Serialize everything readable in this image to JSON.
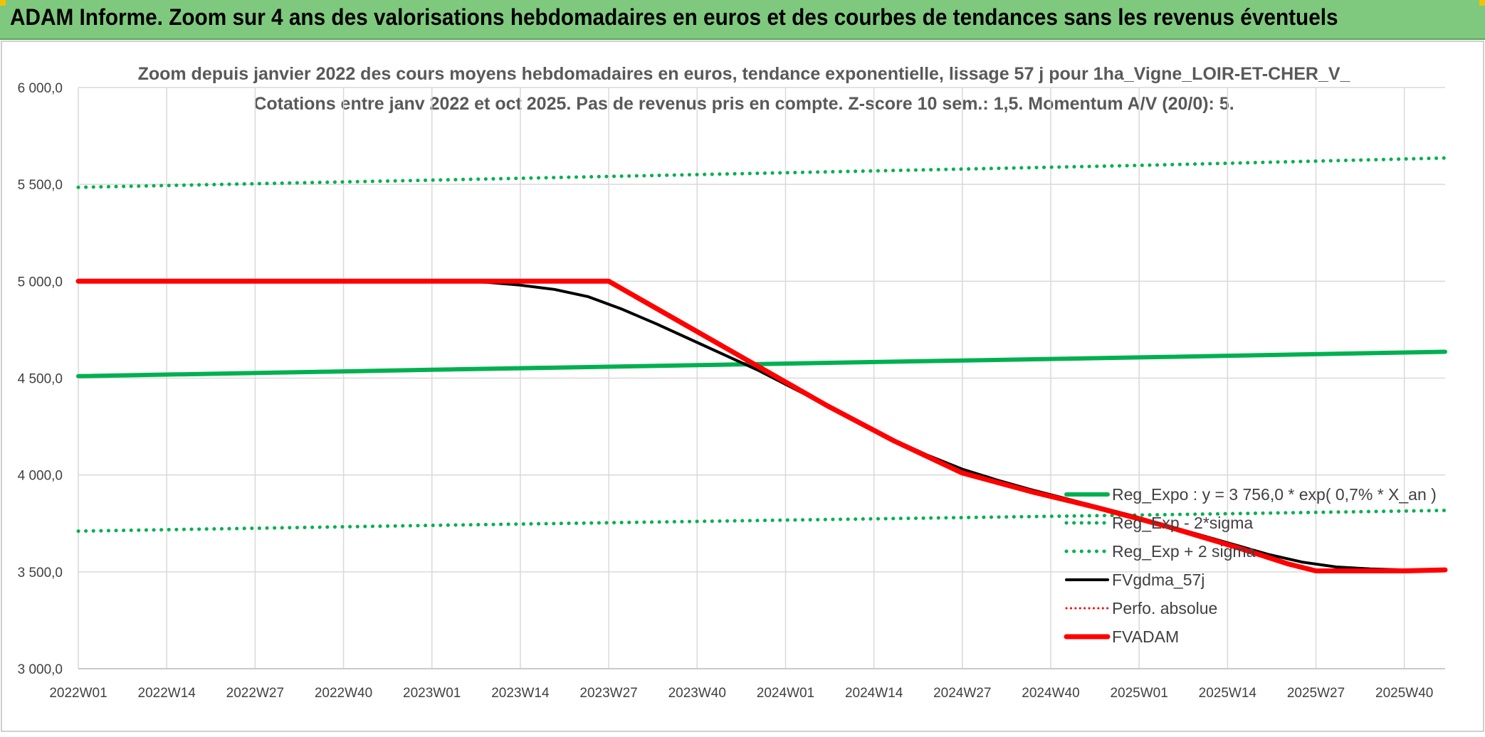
{
  "header": {
    "title": "ADAM Informe. Zoom sur 4 ans des valorisations hebdomadaires en euros et des courbes de tendances sans les revenus éventuels"
  },
  "colors": {
    "banner": "#7ec97e",
    "reg_green": "#00b050",
    "black": "#000000",
    "red": "#ff0000",
    "grid": "#d9d9d9",
    "text": "#404040"
  },
  "chart_data": {
    "type": "line",
    "title": "Zoom depuis janvier 2022 des cours moyens hebdomadaires en euros, tendance exponentielle, lissage 57 j pour 1ha_Vigne_LOIR-ET-CHER_V_",
    "subtitle": "Cotations entre janv 2022 et oct 2025. Pas de revenus pris en compte. Z-score 10 sem.: 1,5. Momentum A/V (20/0): 5.",
    "xlabel": "",
    "ylabel": "",
    "ylim": [
      3000,
      6000
    ],
    "yticks": [
      "3 000,0",
      "3 500,0",
      "4 000,0",
      "4 500,0",
      "5 000,0",
      "5 500,0",
      "6 000,0"
    ],
    "xticks": [
      "2022W01",
      "2022W14",
      "2022W27",
      "2022W40",
      "2023W01",
      "2023W14",
      "2023W27",
      "2023W40",
      "2024W01",
      "2024W14",
      "2024W27",
      "2024W40",
      "2025W01",
      "2025W14",
      "2025W27",
      "2025W40"
    ],
    "xrange": [
      0,
      201
    ],
    "grid": true,
    "legend_position": "bottom-right",
    "series": [
      {
        "name": "Reg_Expo : y = 3 756,0 * exp( 0,7% *  X_an )",
        "color": "#00b050",
        "style": "solid",
        "width": 6,
        "points": [
          [
            0,
            4510
          ],
          [
            52,
            4543
          ],
          [
            104,
            4575
          ],
          [
            156,
            4607
          ],
          [
            201,
            4636
          ]
        ]
      },
      {
        "name": "Reg_Exp - 2*sigma",
        "color": "#00b050",
        "style": "dotted",
        "width": 5,
        "points": [
          [
            0,
            3710
          ],
          [
            52,
            3740
          ],
          [
            104,
            3767
          ],
          [
            156,
            3793
          ],
          [
            201,
            3817
          ]
        ]
      },
      {
        "name": "Reg_Exp + 2 sigma",
        "color": "#00b050",
        "style": "dotted",
        "width": 5,
        "points": [
          [
            0,
            5485
          ],
          [
            52,
            5522
          ],
          [
            104,
            5560
          ],
          [
            156,
            5598
          ],
          [
            201,
            5636
          ]
        ]
      },
      {
        "name": "FVgdma_57j",
        "color": "#000000",
        "style": "solid",
        "width": 4,
        "points": [
          [
            0,
            5000
          ],
          [
            55,
            5000
          ],
          [
            60,
            4995
          ],
          [
            65,
            4980
          ],
          [
            70,
            4958
          ],
          [
            75,
            4920
          ],
          [
            80,
            4855
          ],
          [
            85,
            4780
          ],
          [
            90,
            4700
          ],
          [
            95,
            4620
          ],
          [
            100,
            4540
          ],
          [
            105,
            4450
          ],
          [
            110,
            4360
          ],
          [
            115,
            4270
          ],
          [
            120,
            4180
          ],
          [
            125,
            4100
          ],
          [
            130,
            4030
          ],
          [
            135,
            3975
          ],
          [
            140,
            3925
          ],
          [
            145,
            3880
          ],
          [
            150,
            3835
          ],
          [
            155,
            3790
          ],
          [
            160,
            3740
          ],
          [
            165,
            3690
          ],
          [
            170,
            3640
          ],
          [
            175,
            3590
          ],
          [
            180,
            3550
          ],
          [
            185,
            3525
          ],
          [
            190,
            3515
          ],
          [
            195,
            3510
          ],
          [
            201,
            3510
          ]
        ]
      },
      {
        "name": "Perfo. absolue",
        "color": "#ff0000",
        "style": "dotted",
        "width": 3,
        "points": []
      },
      {
        "name": "FVADAM",
        "color": "#ff0000",
        "style": "solid",
        "width": 7,
        "points": [
          [
            0,
            5000
          ],
          [
            78,
            5000
          ],
          [
            83,
            4900
          ],
          [
            90,
            4760
          ],
          [
            100,
            4560
          ],
          [
            110,
            4360
          ],
          [
            120,
            4175
          ],
          [
            130,
            4010
          ],
          [
            140,
            3915
          ],
          [
            150,
            3830
          ],
          [
            160,
            3735
          ],
          [
            170,
            3630
          ],
          [
            178,
            3540
          ],
          [
            182,
            3505
          ],
          [
            190,
            3505
          ],
          [
            195,
            3505
          ],
          [
            201,
            3510
          ]
        ]
      }
    ]
  }
}
